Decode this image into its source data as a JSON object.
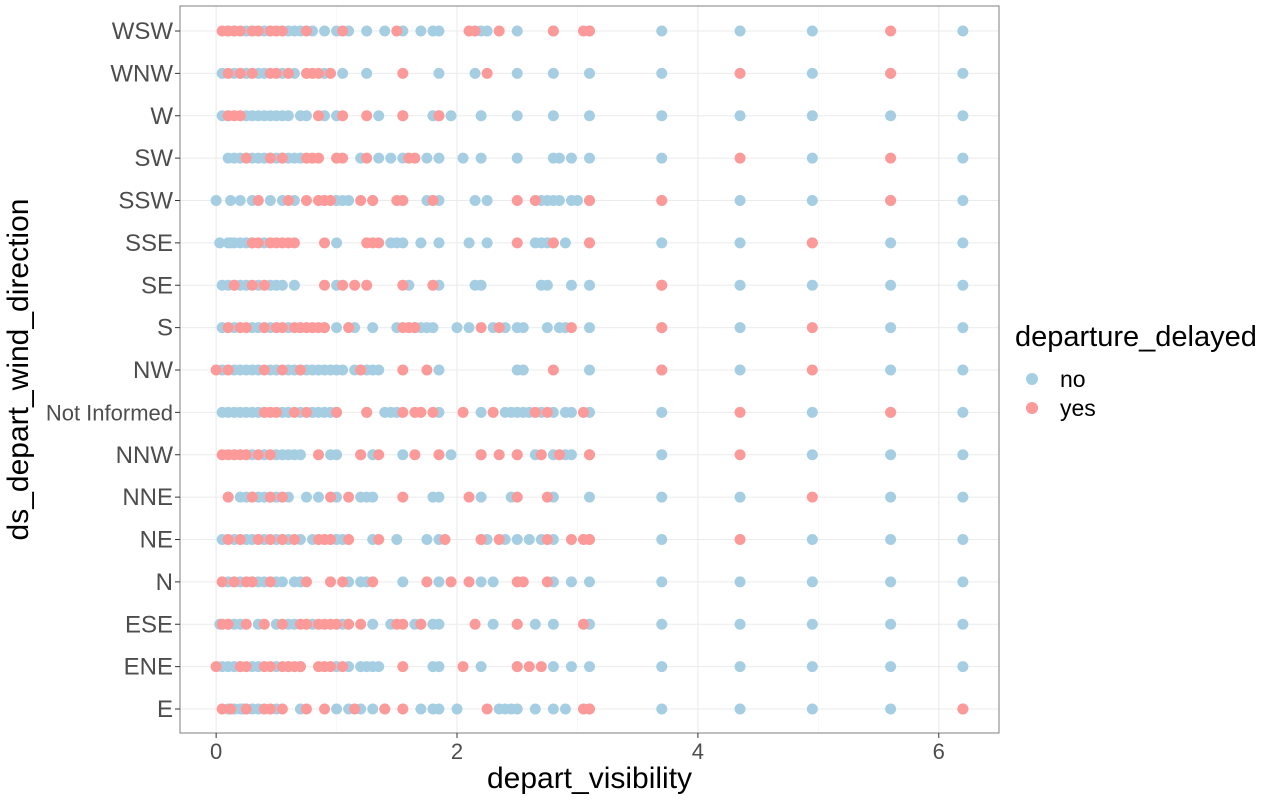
{
  "chart_data": {
    "type": "scatter",
    "title": "",
    "xlabel": "depart_visibility",
    "ylabel": "ds_depart_wind_direction",
    "xlim": [
      -0.3,
      6.5
    ],
    "x_ticks": [
      0,
      2,
      4,
      6
    ],
    "grid": true,
    "legend_position": "right",
    "legend_title": "departure_delayed",
    "categories": [
      "E",
      "ENE",
      "ESE",
      "N",
      "NE",
      "NNE",
      "NNW",
      "Not Informed",
      "NW",
      "S",
      "SE",
      "SSE",
      "SSW",
      "SW",
      "W",
      "WNW",
      "WSW"
    ],
    "series": [
      {
        "name": "no",
        "color": "#a6cee3",
        "points": [
          {
            "y": "E",
            "x": [
              0.1,
              0.15,
              0.2,
              0.22,
              0.25,
              0.3,
              0.35,
              0.5,
              0.7,
              1.0,
              1.1,
              1.2,
              1.3,
              1.4,
              1.7,
              1.8,
              1.85,
              2.0,
              2.35,
              2.4,
              2.45,
              2.5,
              2.65,
              2.8,
              2.9,
              3.1,
              3.7,
              4.35,
              4.95,
              5.6,
              6.2
            ]
          },
          {
            "y": "ENE",
            "x": [
              0.05,
              0.1,
              0.15,
              0.2,
              0.3,
              0.35,
              0.5,
              0.6,
              0.7,
              1.0,
              1.1,
              1.2,
              1.25,
              1.3,
              1.35,
              1.8,
              1.85,
              2.2,
              2.5,
              2.8,
              2.95,
              3.1,
              3.7,
              4.35,
              4.95,
              5.6,
              6.2
            ]
          },
          {
            "y": "ESE",
            "x": [
              0.03,
              0.1,
              0.15,
              0.2,
              0.35,
              0.5,
              0.6,
              0.65,
              0.8,
              1.05,
              1.3,
              1.45,
              1.65,
              1.7,
              1.8,
              1.85,
              2.3,
              2.5,
              2.65,
              2.8,
              3.1,
              3.7,
              4.35,
              4.95,
              5.6,
              6.2
            ]
          },
          {
            "y": "N",
            "x": [
              0.1,
              0.2,
              0.3,
              0.35,
              0.4,
              0.5,
              0.55,
              0.65,
              0.7,
              1.1,
              1.2,
              1.25,
              1.55,
              1.85,
              2.2,
              2.3,
              2.8,
              2.95,
              3.1,
              3.7,
              4.35,
              4.95,
              5.6,
              6.2
            ]
          },
          {
            "y": "NE",
            "x": [
              0.05,
              0.15,
              0.25,
              0.3,
              0.4,
              0.5,
              0.6,
              0.7,
              0.8,
              1.0,
              1.05,
              1.3,
              1.5,
              1.75,
              1.85,
              2.2,
              2.25,
              2.4,
              2.5,
              2.6,
              2.7,
              2.8,
              3.1,
              3.7,
              4.95,
              5.6,
              6.2
            ]
          },
          {
            "y": "NNE",
            "x": [
              0.1,
              0.2,
              0.25,
              0.3,
              0.35,
              0.4,
              0.45,
              0.5,
              0.6,
              0.75,
              0.85,
              1.0,
              1.2,
              1.25,
              1.3,
              1.8,
              1.85,
              2.2,
              2.45,
              2.8,
              3.1,
              3.7,
              4.35,
              5.6,
              6.2
            ]
          },
          {
            "y": "NNW",
            "x": [
              0.3,
              0.4,
              0.5,
              0.55,
              0.6,
              0.65,
              0.7,
              0.95,
              1.0,
              1.2,
              1.3,
              1.55,
              1.95,
              2.2,
              2.5,
              2.65,
              2.8,
              2.9,
              2.95,
              3.1,
              3.7,
              4.95,
              5.6,
              6.2
            ]
          },
          {
            "y": "Not Informed",
            "x": [
              0.05,
              0.1,
              0.15,
              0.2,
              0.25,
              0.3,
              0.35,
              0.55,
              0.6,
              0.7,
              0.8,
              0.85,
              0.9,
              0.95,
              1.0,
              1.25,
              1.4,
              1.45,
              1.5,
              1.85,
              2.2,
              2.4,
              2.45,
              2.5,
              2.55,
              2.6,
              2.7,
              2.8,
              2.9,
              2.95,
              3.1,
              3.7,
              4.95,
              5.6,
              6.2
            ]
          },
          {
            "y": "NW",
            "x": [
              0.05,
              0.15,
              0.2,
              0.25,
              0.3,
              0.35,
              0.45,
              0.5,
              0.6,
              0.65,
              0.7,
              0.75,
              0.8,
              0.85,
              0.9,
              0.95,
              1.0,
              1.05,
              1.15,
              1.25,
              1.3,
              1.35,
              1.85,
              2.5,
              2.55,
              3.1,
              3.7,
              4.35,
              5.6,
              6.2
            ]
          },
          {
            "y": "S",
            "x": [
              0.05,
              0.15,
              0.3,
              0.35,
              0.45,
              0.6,
              1.0,
              1.15,
              1.3,
              1.5,
              1.65,
              1.7,
              1.75,
              1.8,
              2.0,
              2.1,
              2.3,
              2.4,
              2.5,
              2.55,
              2.75,
              2.85,
              2.9,
              3.1,
              3.7,
              4.35,
              5.6,
              6.2
            ]
          },
          {
            "y": "SE",
            "x": [
              0.05,
              0.1,
              0.15,
              0.2,
              0.25,
              0.35,
              0.45,
              0.5,
              0.55,
              0.65,
              1.0,
              1.6,
              1.85,
              2.15,
              2.2,
              2.7,
              2.75,
              2.95,
              3.1,
              3.7,
              4.35,
              4.95,
              5.6,
              6.2
            ]
          },
          {
            "y": "SSE",
            "x": [
              0.03,
              0.1,
              0.12,
              0.15,
              0.2,
              0.25,
              0.3,
              0.4,
              1.0,
              1.45,
              1.5,
              1.55,
              1.7,
              1.85,
              2.1,
              2.25,
              2.65,
              2.7,
              2.75,
              2.8,
              2.9,
              3.1,
              3.7,
              4.35,
              4.95,
              5.6,
              6.2
            ]
          },
          {
            "y": "SSW",
            "x": [
              0.0,
              0.12,
              0.2,
              0.3,
              0.45,
              0.55,
              0.65,
              1.0,
              1.05,
              1.1,
              1.3,
              1.55,
              1.75,
              1.85,
              2.15,
              2.25,
              2.7,
              2.75,
              2.8,
              2.85,
              2.95,
              3.0,
              3.1,
              3.7,
              4.35,
              4.95,
              5.6,
              6.2
            ]
          },
          {
            "y": "SW",
            "x": [
              0.1,
              0.15,
              0.2,
              0.25,
              0.3,
              0.35,
              0.4,
              0.45,
              0.5,
              0.55,
              0.6,
              0.65,
              0.7,
              1.2,
              1.35,
              1.45,
              1.55,
              1.75,
              1.85,
              2.05,
              2.2,
              2.5,
              2.8,
              2.85,
              2.95,
              3.1,
              3.7,
              4.95,
              6.2
            ]
          },
          {
            "y": "W",
            "x": [
              0.05,
              0.1,
              0.25,
              0.3,
              0.35,
              0.4,
              0.45,
              0.5,
              0.55,
              0.6,
              0.7,
              0.75,
              0.9,
              1.0,
              1.35,
              1.55,
              1.8,
              1.85,
              1.95,
              2.2,
              2.5,
              2.8,
              3.1,
              3.7,
              4.35,
              4.95,
              5.6,
              6.2
            ]
          },
          {
            "y": "WNW",
            "x": [
              0.05,
              0.15,
              0.2,
              0.25,
              0.35,
              0.4,
              0.55,
              0.65,
              0.9,
              1.05,
              1.25,
              1.85,
              2.15,
              2.5,
              2.8,
              3.1,
              3.7,
              4.95,
              5.6,
              6.2
            ]
          },
          {
            "y": "WSW",
            "x": [
              0.1,
              0.15,
              0.25,
              0.3,
              0.4,
              0.45,
              0.6,
              0.65,
              0.7,
              0.8,
              0.9,
              1.0,
              1.1,
              1.25,
              1.4,
              1.55,
              1.7,
              1.8,
              1.85,
              2.2,
              2.25,
              2.5,
              2.8,
              3.1,
              3.7,
              4.35,
              4.95,
              6.2
            ]
          }
        ]
      },
      {
        "name": "yes",
        "color": "#fb9a99",
        "points": [
          {
            "y": "E",
            "x": [
              0.05,
              0.12,
              0.25,
              0.4,
              0.45,
              0.55,
              0.75,
              0.9,
              1.15,
              1.4,
              1.55,
              2.25,
              3.05,
              3.1,
              6.2
            ]
          },
          {
            "y": "ENE",
            "x": [
              0.0,
              0.2,
              0.25,
              0.4,
              0.45,
              0.55,
              0.6,
              0.65,
              0.7,
              0.85,
              0.9,
              0.95,
              1.05,
              1.55,
              2.05,
              2.5,
              2.6,
              2.7
            ]
          },
          {
            "y": "ESE",
            "x": [
              0.05,
              0.1,
              0.25,
              0.4,
              0.55,
              0.7,
              0.75,
              0.85,
              0.9,
              0.95,
              1.0,
              1.1,
              1.2,
              1.5,
              1.55,
              1.7,
              2.15,
              2.5,
              3.05
            ]
          },
          {
            "y": "N",
            "x": [
              0.05,
              0.15,
              0.25,
              0.3,
              0.45,
              0.75,
              0.95,
              1.05,
              1.3,
              1.75,
              1.95,
              2.1,
              2.5,
              2.55,
              2.75
            ]
          },
          {
            "y": "NE",
            "x": [
              0.1,
              0.2,
              0.35,
              0.45,
              0.55,
              0.65,
              0.85,
              0.9,
              0.95,
              1.1,
              1.35,
              1.9,
              2.2,
              2.35,
              2.75,
              2.95,
              3.05,
              3.1,
              4.35
            ]
          },
          {
            "y": "NNE",
            "x": [
              0.1,
              0.3,
              0.45,
              0.55,
              0.95,
              1.1,
              1.55,
              2.1,
              2.5,
              2.75,
              4.95
            ]
          },
          {
            "y": "NNW",
            "x": [
              0.05,
              0.1,
              0.15,
              0.2,
              0.25,
              0.35,
              0.45,
              0.85,
              1.2,
              1.35,
              1.65,
              1.85,
              2.2,
              2.35,
              2.5,
              2.7,
              2.85,
              3.1,
              4.35
            ]
          },
          {
            "y": "Not Informed",
            "x": [
              0.4,
              0.45,
              0.5,
              0.65,
              0.75,
              1.0,
              1.25,
              1.55,
              1.65,
              1.7,
              1.8,
              2.05,
              2.3,
              2.65,
              2.75,
              3.05,
              4.35,
              5.6
            ]
          },
          {
            "y": "NW",
            "x": [
              0.0,
              0.1,
              0.4,
              0.55,
              0.7,
              1.2,
              1.55,
              1.75,
              2.8,
              3.7,
              4.95
            ]
          },
          {
            "y": "S",
            "x": [
              0.1,
              0.2,
              0.25,
              0.4,
              0.5,
              0.55,
              0.65,
              0.7,
              0.75,
              0.8,
              0.85,
              0.9,
              1.1,
              1.55,
              1.6,
              1.65,
              2.2,
              2.35,
              2.95,
              3.7,
              4.95
            ]
          },
          {
            "y": "SE",
            "x": [
              0.15,
              0.3,
              0.4,
              0.9,
              1.05,
              1.15,
              1.25,
              1.55,
              1.8,
              3.7
            ]
          },
          {
            "y": "SSE",
            "x": [
              0.3,
              0.35,
              0.45,
              0.5,
              0.55,
              0.6,
              0.65,
              0.9,
              1.25,
              1.3,
              1.35,
              2.5,
              2.8,
              3.1,
              4.95
            ]
          },
          {
            "y": "SSW",
            "x": [
              0.35,
              0.6,
              0.75,
              0.85,
              0.9,
              0.95,
              1.2,
              1.3,
              1.5,
              1.55,
              1.8,
              2.5,
              2.65,
              3.1,
              3.7,
              5.6
            ]
          },
          {
            "y": "SW",
            "x": [
              0.25,
              0.45,
              0.55,
              0.75,
              0.8,
              0.85,
              1.0,
              1.05,
              1.25,
              1.6,
              1.65,
              4.35,
              5.6
            ]
          },
          {
            "y": "W",
            "x": [
              0.1,
              0.15,
              0.2,
              0.85,
              1.05,
              1.25,
              1.55,
              1.85
            ]
          },
          {
            "y": "WNW",
            "x": [
              0.1,
              0.2,
              0.3,
              0.45,
              0.5,
              0.6,
              0.75,
              0.8,
              0.85,
              0.95,
              1.55,
              2.25,
              4.35,
              5.6
            ]
          },
          {
            "y": "WSW",
            "x": [
              0.05,
              0.1,
              0.15,
              0.2,
              0.3,
              0.35,
              0.45,
              0.5,
              0.55,
              0.75,
              1.05,
              1.5,
              2.1,
              2.15,
              2.35,
              2.8,
              3.05,
              3.1,
              5.6
            ]
          }
        ]
      }
    ]
  }
}
